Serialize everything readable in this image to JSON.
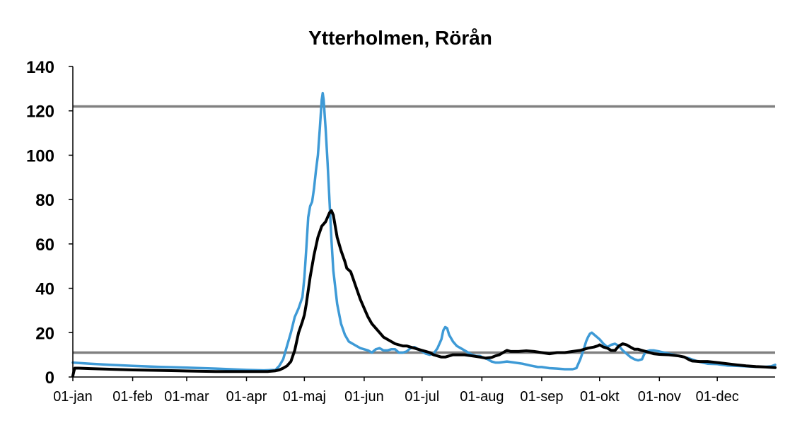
{
  "chart_data": {
    "type": "line",
    "title": "Ytterholmen, Rörån",
    "xlabel": "",
    "ylabel": "",
    "ylim": [
      0,
      140
    ],
    "yticks": [
      0,
      20,
      40,
      60,
      80,
      100,
      120,
      140
    ],
    "xlim_day": [
      1,
      365
    ],
    "xticks": [
      {
        "label": "01-jan",
        "day": 1
      },
      {
        "label": "01-feb",
        "day": 32
      },
      {
        "label": "01-mar",
        "day": 60
      },
      {
        "label": "01-apr",
        "day": 91
      },
      {
        "label": "01-maj",
        "day": 121
      },
      {
        "label": "01-jun",
        "day": 152
      },
      {
        "label": "01-jul",
        "day": 182
      },
      {
        "label": "01-aug",
        "day": 213
      },
      {
        "label": "01-sep",
        "day": 244
      },
      {
        "label": "01-okt",
        "day": 274
      },
      {
        "label": "01-nov",
        "day": 305
      },
      {
        "label": "01-dec",
        "day": 335
      }
    ],
    "grid": false,
    "legend": "none",
    "reference_lines": [
      {
        "value": 122,
        "color": "#808080"
      },
      {
        "value": 11,
        "color": "#808080"
      }
    ],
    "series": [
      {
        "color": "#3e9ad6",
        "points": [
          [
            1,
            6.5
          ],
          [
            10,
            6
          ],
          [
            20,
            5.5
          ],
          [
            32,
            5
          ],
          [
            45,
            4.6
          ],
          [
            60,
            4.2
          ],
          [
            75,
            3.8
          ],
          [
            91,
            3.2
          ],
          [
            100,
            3
          ],
          [
            106,
            3.2
          ],
          [
            108,
            5
          ],
          [
            110,
            8
          ],
          [
            112,
            14
          ],
          [
            114,
            20
          ],
          [
            116,
            27
          ],
          [
            118,
            31
          ],
          [
            120,
            36
          ],
          [
            121,
            45
          ],
          [
            122,
            58
          ],
          [
            123,
            72
          ],
          [
            124,
            77
          ],
          [
            125,
            79
          ],
          [
            126,
            85
          ],
          [
            127,
            93
          ],
          [
            128,
            100
          ],
          [
            129,
            112
          ],
          [
            130,
            125
          ],
          [
            130.5,
            128
          ],
          [
            131,
            125
          ],
          [
            132,
            112
          ],
          [
            133,
            97
          ],
          [
            134,
            80
          ],
          [
            135,
            62
          ],
          [
            136,
            48
          ],
          [
            138,
            33
          ],
          [
            140,
            24
          ],
          [
            142,
            19
          ],
          [
            144,
            16
          ],
          [
            146,
            15
          ],
          [
            148,
            14
          ],
          [
            150,
            13
          ],
          [
            152,
            12.5
          ],
          [
            154,
            12
          ],
          [
            156,
            11
          ],
          [
            158,
            12.5
          ],
          [
            160,
            13
          ],
          [
            162,
            12
          ],
          [
            164,
            12
          ],
          [
            166,
            12.5
          ],
          [
            168,
            12.5
          ],
          [
            170,
            11
          ],
          [
            172,
            11
          ],
          [
            174,
            11.5
          ],
          [
            176,
            13
          ],
          [
            178,
            13.5
          ],
          [
            180,
            12.5
          ],
          [
            182,
            11.5
          ],
          [
            184,
            10.5
          ],
          [
            186,
            10
          ],
          [
            188,
            10.5
          ],
          [
            190,
            13
          ],
          [
            192,
            17
          ],
          [
            193,
            21
          ],
          [
            194,
            22.5
          ],
          [
            195,
            22
          ],
          [
            196,
            19
          ],
          [
            198,
            16
          ],
          [
            200,
            14
          ],
          [
            202,
            13
          ],
          [
            204,
            12
          ],
          [
            206,
            11
          ],
          [
            208,
            10
          ],
          [
            210,
            9.5
          ],
          [
            212,
            9.5
          ],
          [
            213,
            9
          ],
          [
            216,
            8
          ],
          [
            218,
            7
          ],
          [
            220,
            6.5
          ],
          [
            222,
            6.5
          ],
          [
            226,
            7
          ],
          [
            230,
            6.5
          ],
          [
            234,
            6
          ],
          [
            238,
            5.2
          ],
          [
            242,
            4.5
          ],
          [
            244,
            4.5
          ],
          [
            248,
            4
          ],
          [
            252,
            3.8
          ],
          [
            256,
            3.5
          ],
          [
            260,
            3.5
          ],
          [
            262,
            4
          ],
          [
            264,
            8
          ],
          [
            266,
            13
          ],
          [
            267,
            16
          ],
          [
            268,
            18
          ],
          [
            269,
            19.5
          ],
          [
            270,
            20
          ],
          [
            272,
            18.5
          ],
          [
            274,
            17
          ],
          [
            276,
            15
          ],
          [
            278,
            13.5
          ],
          [
            280,
            14.5
          ],
          [
            282,
            15
          ],
          [
            284,
            14
          ],
          [
            286,
            12
          ],
          [
            288,
            10.5
          ],
          [
            290,
            9
          ],
          [
            292,
            8
          ],
          [
            294,
            7.5
          ],
          [
            296,
            8
          ],
          [
            297,
            10
          ],
          [
            298,
            11.5
          ],
          [
            300,
            12
          ],
          [
            302,
            12
          ],
          [
            305,
            11.5
          ],
          [
            310,
            10.5
          ],
          [
            315,
            9.5
          ],
          [
            320,
            8.5
          ],
          [
            325,
            7
          ],
          [
            330,
            6
          ],
          [
            335,
            5.8
          ],
          [
            340,
            5.2
          ],
          [
            345,
            5
          ],
          [
            350,
            4.8
          ],
          [
            355,
            4.6
          ],
          [
            360,
            4.6
          ],
          [
            363,
            4.8
          ],
          [
            365,
            5.5
          ]
        ]
      },
      {
        "color": "#000000",
        "points": [
          [
            1,
            0.5
          ],
          [
            1.5,
            2.5
          ],
          [
            2,
            4
          ],
          [
            4,
            4
          ],
          [
            10,
            3.8
          ],
          [
            20,
            3.5
          ],
          [
            32,
            3.2
          ],
          [
            45,
            3
          ],
          [
            60,
            2.7
          ],
          [
            75,
            2.5
          ],
          [
            91,
            2.5
          ],
          [
            102,
            2.5
          ],
          [
            106,
            2.8
          ],
          [
            108,
            3.2
          ],
          [
            110,
            4
          ],
          [
            112,
            5
          ],
          [
            114,
            7
          ],
          [
            116,
            12
          ],
          [
            118,
            20
          ],
          [
            120,
            25
          ],
          [
            121,
            28
          ],
          [
            122,
            33
          ],
          [
            124,
            45
          ],
          [
            126,
            55
          ],
          [
            128,
            63
          ],
          [
            130,
            68
          ],
          [
            132,
            70
          ],
          [
            134,
            74
          ],
          [
            135,
            75
          ],
          [
            136,
            73
          ],
          [
            137,
            68
          ],
          [
            138,
            63
          ],
          [
            140,
            57
          ],
          [
            142,
            52
          ],
          [
            143,
            49
          ],
          [
            145,
            47.5
          ],
          [
            146,
            45
          ],
          [
            148,
            40
          ],
          [
            150,
            35
          ],
          [
            152,
            31
          ],
          [
            154,
            27
          ],
          [
            156,
            24
          ],
          [
            158,
            22
          ],
          [
            160,
            20
          ],
          [
            162,
            18
          ],
          [
            164,
            17
          ],
          [
            166,
            16
          ],
          [
            168,
            15
          ],
          [
            170,
            14.5
          ],
          [
            172,
            14
          ],
          [
            174,
            14
          ],
          [
            176,
            13.5
          ],
          [
            178,
            13
          ],
          [
            180,
            12.5
          ],
          [
            182,
            12
          ],
          [
            184,
            11.5
          ],
          [
            186,
            11
          ],
          [
            188,
            10
          ],
          [
            190,
            9.5
          ],
          [
            192,
            9
          ],
          [
            194,
            9
          ],
          [
            196,
            9.5
          ],
          [
            198,
            10
          ],
          [
            200,
            10
          ],
          [
            204,
            10
          ],
          [
            208,
            9.5
          ],
          [
            212,
            9
          ],
          [
            215,
            8.5
          ],
          [
            218,
            8.8
          ],
          [
            220,
            9.5
          ],
          [
            222,
            10
          ],
          [
            224,
            11
          ],
          [
            226,
            12
          ],
          [
            228,
            11.5
          ],
          [
            232,
            11.5
          ],
          [
            236,
            11.8
          ],
          [
            240,
            11.5
          ],
          [
            244,
            11
          ],
          [
            248,
            10.5
          ],
          [
            252,
            11
          ],
          [
            256,
            11
          ],
          [
            260,
            11.5
          ],
          [
            264,
            12
          ],
          [
            268,
            13
          ],
          [
            271,
            13.5
          ],
          [
            273,
            14
          ],
          [
            274,
            14.5
          ],
          [
            276,
            13.5
          ],
          [
            278,
            13
          ],
          [
            280,
            12
          ],
          [
            282,
            12
          ],
          [
            284,
            14
          ],
          [
            286,
            15
          ],
          [
            288,
            14.5
          ],
          [
            290,
            13.5
          ],
          [
            292,
            12.5
          ],
          [
            294,
            12.5
          ],
          [
            296,
            12
          ],
          [
            298,
            11.5
          ],
          [
            300,
            11
          ],
          [
            302,
            10.5
          ],
          [
            305,
            10.2
          ],
          [
            310,
            10
          ],
          [
            315,
            9.5
          ],
          [
            318,
            9
          ],
          [
            320,
            8
          ],
          [
            322,
            7.2
          ],
          [
            326,
            7
          ],
          [
            330,
            7
          ],
          [
            335,
            6.5
          ],
          [
            340,
            6
          ],
          [
            345,
            5.5
          ],
          [
            350,
            5
          ],
          [
            355,
            4.7
          ],
          [
            360,
            4.5
          ],
          [
            365,
            4.2
          ]
        ]
      }
    ]
  }
}
